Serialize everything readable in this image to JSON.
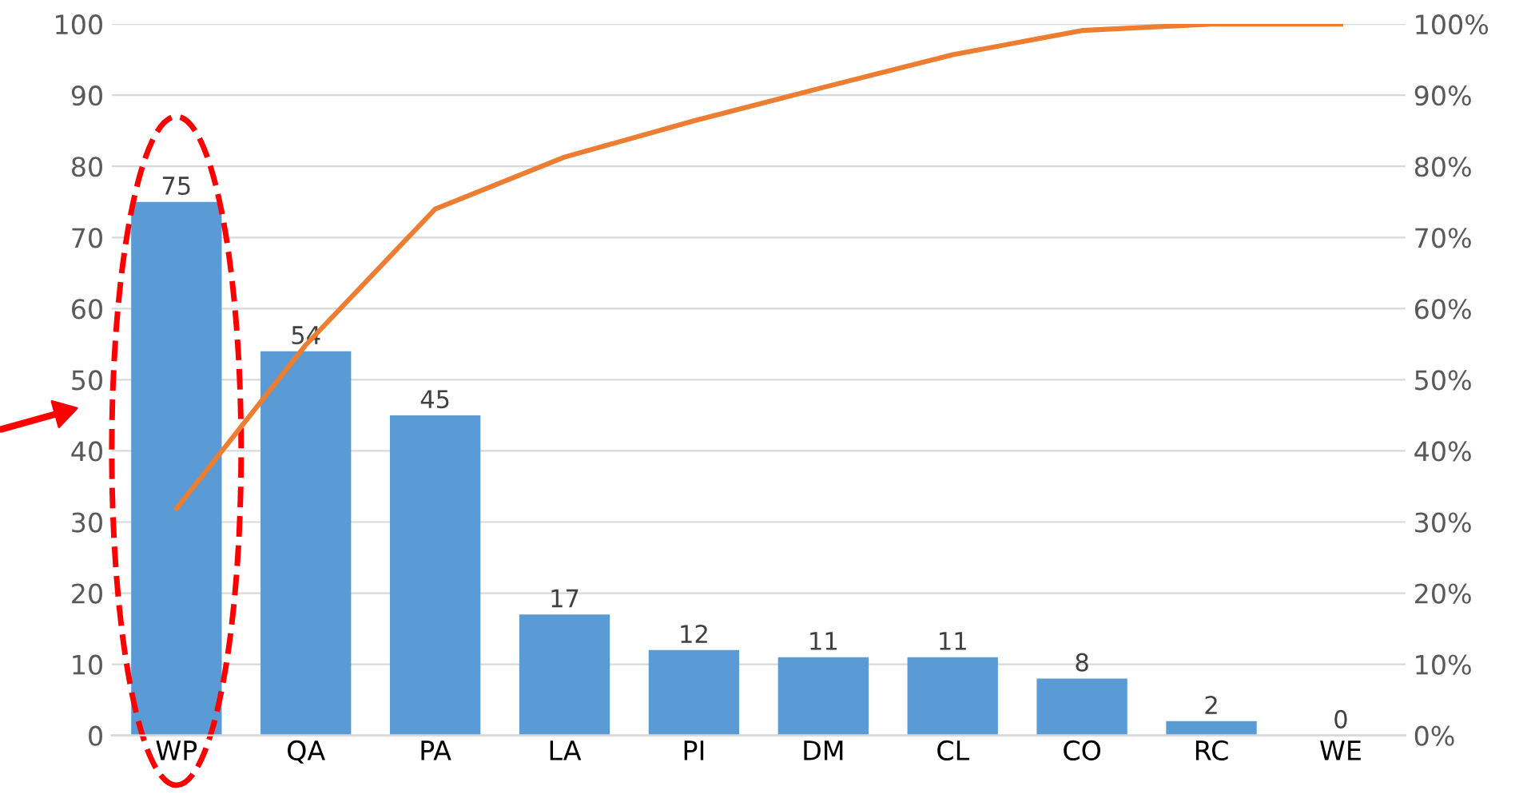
{
  "chart_data": {
    "type": "bar",
    "categories": [
      "WP",
      "QA",
      "PA",
      "LA",
      "PI",
      "DM",
      "CL",
      "CO",
      "RC",
      "WE"
    ],
    "series": [
      {
        "color": "#5b9bd5",
        "values": [
          75,
          54,
          45,
          17,
          12,
          11,
          11,
          8,
          2,
          0
        ],
        "data_labels": true
      },
      {
        "type": "line",
        "axis": "y2",
        "color": "#ed7d31",
        "values": [
          31.9,
          54.9,
          74.0,
          81.3,
          86.4,
          91.1,
          95.7,
          99.1,
          100,
          100
        ]
      }
    ],
    "ylim": [
      0,
      100
    ],
    "yticks": [
      0,
      10,
      20,
      30,
      40,
      50,
      60,
      70,
      80,
      90,
      100
    ],
    "y2lim": [
      0,
      100
    ],
    "y2ticks": [
      {
        "value": 0,
        "label": "0%"
      },
      {
        "value": 10,
        "label": "10%"
      },
      {
        "value": 20,
        "label": "20%"
      },
      {
        "value": 30,
        "label": "30%"
      },
      {
        "value": 40,
        "label": "40%"
      },
      {
        "value": 50,
        "label": "50%"
      },
      {
        "value": 60,
        "label": "60%"
      },
      {
        "value": 70,
        "label": "70%"
      },
      {
        "value": 80,
        "label": "80%"
      },
      {
        "value": 90,
        "label": "90%"
      },
      {
        "value": 100,
        "label": "100%"
      }
    ],
    "grid": "y",
    "legend": false,
    "marker": "none",
    "line_style": "solid"
  }
}
